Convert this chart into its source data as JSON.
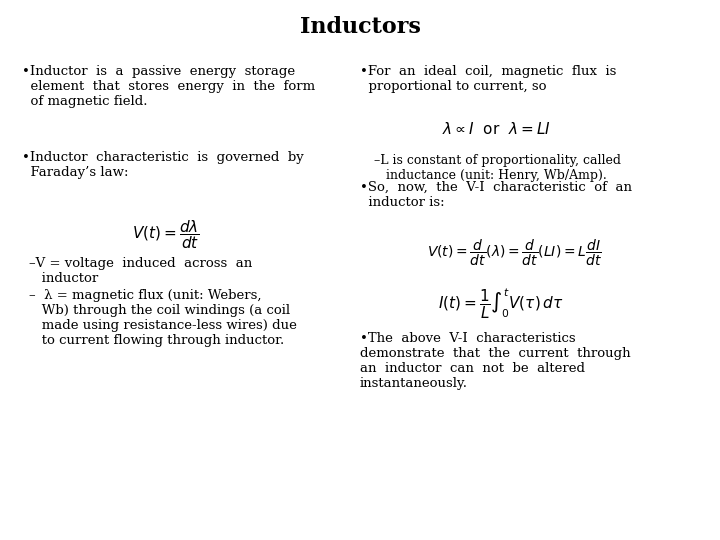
{
  "title": "Inductors",
  "background_color": "#ffffff",
  "title_fontsize": 16,
  "title_fontweight": "bold",
  "text_fontsize": 9.5,
  "formula_fontsize": 10,
  "small_fontsize": 9.0
}
